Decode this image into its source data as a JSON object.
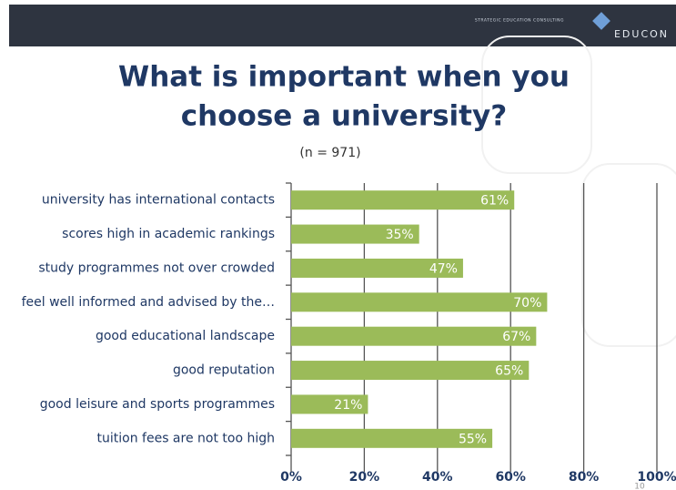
{
  "header": {
    "tagline": "STRATEGIC EDUCATION CONSULTING",
    "brand": "EDUCON"
  },
  "footer": {
    "page_number": "10"
  },
  "chart_data": {
    "type": "hbar",
    "title": [
      "What is important when you",
      "choose a university?"
    ],
    "subtitle": "(n = 971)",
    "categories": [
      "university has international contacts",
      "scores high in academic rankings",
      "study programmes not over crowded",
      "feel well informed and advised by the…",
      "good educational landscape",
      "good reputation",
      "good leisure and sports programmes",
      "tuition fees are not too high"
    ],
    "values": [
      61,
      35,
      47,
      70,
      67,
      65,
      21,
      55
    ],
    "value_labels": [
      "61%",
      "35%",
      "47%",
      "70%",
      "67%",
      "65%",
      "21%",
      "55%"
    ],
    "color": "#9bbb59",
    "xlim": [
      0,
      100
    ],
    "xticks": [
      {
        "value": 0,
        "label": "0%"
      },
      {
        "value": 20,
        "label": "20%"
      },
      {
        "value": 40,
        "label": "40%"
      },
      {
        "value": 60,
        "label": "60%"
      },
      {
        "value": 80,
        "label": "80%"
      },
      {
        "value": 100,
        "label": "100%"
      }
    ],
    "grid": true
  }
}
